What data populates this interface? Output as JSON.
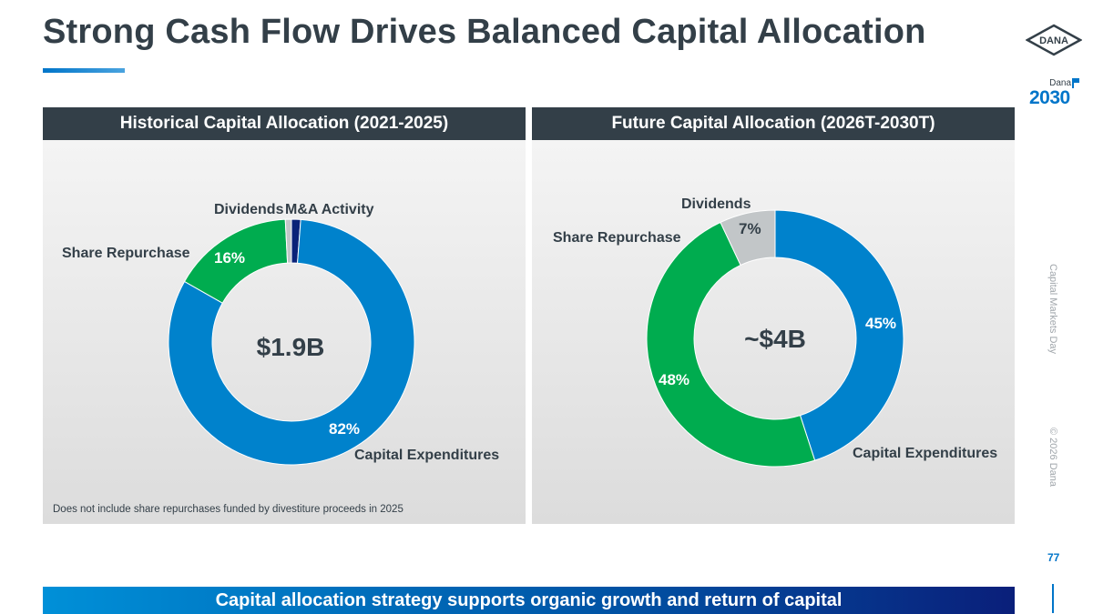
{
  "title": "Strong Cash Flow Drives Balanced Capital Allocation",
  "logo": {
    "brand": "DANA"
  },
  "badge": {
    "top": "Dana",
    "year": "2030"
  },
  "sidebar": {
    "event": "Capital Markets Day",
    "copyright": "© 2026 Dana"
  },
  "page_number": "77",
  "banner": "Capital allocation strategy supports organic growth and return of capital",
  "colors": {
    "capex": "#0082cc",
    "repurchase": "#00ac4f",
    "dividends": "#c2c6c8",
    "ma": "#0a2278",
    "header": "#333f48"
  },
  "chart_data": [
    {
      "type": "pie",
      "variant": "donut",
      "title": "Historical Capital Allocation (2021-2025)",
      "center_label": "$1.9B",
      "footnote": "Does not include share repurchases funded by divestiture proceeds in 2025",
      "slices": [
        {
          "name": "Capital Expenditures",
          "value": 82,
          "label": "82%",
          "color": "#0082cc"
        },
        {
          "name": "Share Repurchase",
          "value": 16,
          "label": "16%",
          "color": "#00ac4f"
        },
        {
          "name": "Dividends",
          "value": 0.8,
          "label": "",
          "color": "#c2c6c8"
        },
        {
          "name": "M&A Activity",
          "value": 1.2,
          "label": "",
          "color": "#0a2278"
        }
      ]
    },
    {
      "type": "pie",
      "variant": "donut",
      "title": "Future Capital Allocation (2026T-2030T)",
      "center_label": "~$4B",
      "slices": [
        {
          "name": "Capital Expenditures",
          "value": 45,
          "label": "45%",
          "color": "#0082cc"
        },
        {
          "name": "Share Repurchase",
          "value": 48,
          "label": "48%",
          "color": "#00ac4f"
        },
        {
          "name": "Dividends",
          "value": 7,
          "label": "7%",
          "color": "#c2c6c8"
        }
      ]
    }
  ]
}
